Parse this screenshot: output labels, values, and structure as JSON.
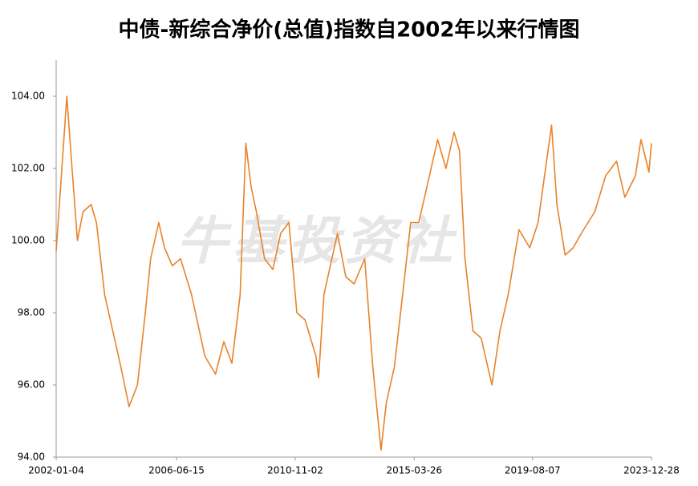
{
  "chart_data": {
    "type": "line",
    "title": "中债-新综合净价(总值)指数自2002年以来行情图",
    "watermark": "牛基投资社",
    "x": [
      "2002-01-04",
      "2002-05-28",
      "2002-08-06",
      "2002-10-18",
      "2003-01-02",
      "2003-04-21",
      "2003-07-01",
      "2003-10-20",
      "2004-02-06",
      "2004-05-26",
      "2004-09-13",
      "2005-01-04",
      "2005-04-20",
      "2005-07-01",
      "2005-10-19",
      "2006-01-04",
      "2006-04-20",
      "2006-08-08",
      "2007-01-04",
      "2007-07-02",
      "2007-11-23",
      "2008-03-14",
      "2008-07-01",
      "2008-10-20",
      "2009-01-05",
      "2009-03-16",
      "2009-05-27",
      "2009-09-14",
      "2010-01-04",
      "2010-04-20",
      "2010-08-09",
      "2010-11-24",
      "2011-03-15",
      "2011-08-08",
      "2011-09-13",
      "2011-11-24",
      "2012-02-07",
      "2012-05-25",
      "2012-09-13",
      "2013-01-04",
      "2013-05-27",
      "2013-09-13",
      "2014-01-02",
      "2014-03-14",
      "2014-07-01",
      "2014-10-20",
      "2015-02-06",
      "2015-05-26",
      "2015-09-14",
      "2016-02-05",
      "2016-05-26",
      "2016-09-13",
      "2016-11-25",
      "2017-02-07",
      "2017-05-26",
      "2017-09-13",
      "2018-02-06",
      "2018-05-25",
      "2018-09-13",
      "2019-02-06",
      "2019-07-01",
      "2019-10-21",
      "2020-04-20",
      "2020-07-01",
      "2020-10-20",
      "2021-02-05",
      "2021-05-26",
      "2021-11-24",
      "2022-04-20",
      "2022-09-13",
      "2023-01-03",
      "2023-05-26",
      "2023-08-08",
      "2023-11-24",
      "2023-12-28"
    ],
    "series": [
      {
        "name": "中债-新综合净价(总值)指数",
        "color": "#e8832a",
        "values": [
          99.7,
          104.0,
          102.0,
          100.0,
          100.8,
          101.0,
          100.5,
          98.5,
          97.5,
          96.5,
          95.4,
          96.0,
          98.0,
          99.5,
          100.5,
          99.8,
          99.3,
          99.5,
          98.5,
          96.8,
          96.3,
          97.2,
          96.6,
          98.5,
          102.7,
          101.5,
          100.8,
          99.5,
          99.2,
          100.2,
          100.5,
          98.0,
          97.8,
          96.8,
          96.2,
          98.5,
          99.2,
          100.2,
          99.0,
          98.8,
          99.5,
          96.5,
          94.2,
          95.5,
          96.5,
          98.5,
          100.5,
          100.5,
          101.5,
          102.8,
          102.0,
          103.0,
          102.5,
          99.5,
          97.5,
          97.3,
          96.0,
          97.5,
          98.5,
          100.3,
          99.8,
          100.5,
          103.2,
          101.0,
          99.6,
          99.8,
          100.2,
          100.8,
          101.8,
          102.2,
          101.2,
          101.8,
          102.8,
          101.9,
          102.7
        ]
      }
    ],
    "xlim": [
      "2002-01-04",
      "2023-12-28"
    ],
    "xticks": [
      "2002-01-04",
      "2006-06-15",
      "2010-11-02",
      "2015-03-26",
      "2019-08-07",
      "2023-12-28"
    ],
    "ylim": [
      94,
      105
    ],
    "yticks": [
      {
        "value": 94,
        "label": "94.00"
      },
      {
        "value": 96,
        "label": "96.00"
      },
      {
        "value": 98,
        "label": "98.00"
      },
      {
        "value": 100,
        "label": "100.00"
      },
      {
        "value": 102,
        "label": "102.00"
      },
      {
        "value": 104,
        "label": "104.00"
      }
    ],
    "grid": false
  }
}
